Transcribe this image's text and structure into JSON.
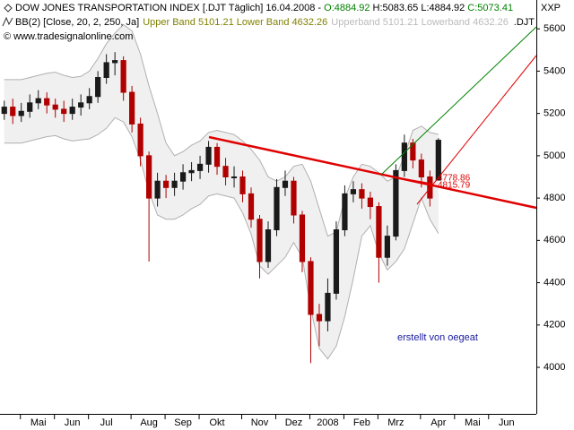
{
  "header": {
    "title": "DOW JONES TRANSPORTATION INDEX [.DJT  Täglich] 16.04.2008 - ",
    "open": "O:4884.92",
    "high_low": "H:5083.65 L:4884.92",
    "close": "C:5073.41",
    "indicator": "BB(2) [Close, 20, 2, 250, Ja]",
    "bands": "Upper Band 5101.21 Lower Band 4632.26",
    "bands_faint": "Upperband 5101.21 Lowerband 4632.26",
    "symbol": ".DJT",
    "copyright": "© www.tradesignalonline.com",
    "corner": "XXP"
  },
  "chart_data": {
    "type": "candlestick",
    "categories": [
      null,
      null,
      null,
      null,
      "Mai",
      null,
      null,
      null,
      "Jun",
      null,
      null,
      null,
      "Jul",
      null,
      null,
      null,
      null,
      "Aug",
      null,
      null,
      null,
      "Sep",
      null,
      null,
      null,
      "Okt",
      null,
      null,
      null,
      null,
      "Nov",
      null,
      null,
      null,
      "Dez",
      null,
      null,
      null,
      "2008",
      null,
      null,
      null,
      "Feb",
      null,
      null,
      null,
      "Mrz",
      null,
      null,
      null,
      null,
      "Apr",
      null,
      null,
      null,
      "Mai",
      null,
      null,
      null,
      "Jun",
      null,
      null,
      null
    ],
    "open": [
      5200,
      5230,
      5190,
      5210,
      5250,
      5270,
      5240,
      5220,
      5200,
      5230,
      5250,
      5280,
      5370,
      5440,
      5450,
      5300,
      5150,
      5000,
      4800,
      4880,
      4850,
      4880,
      4920,
      4930,
      4960,
      5040,
      4950,
      4900,
      4900,
      4820,
      4700,
      4500,
      4650,
      4850,
      4880,
      4720,
      4500,
      4250,
      4220,
      4350,
      4650,
      4820,
      4840,
      4800,
      4760,
      4520,
      4620,
      4930,
      5060,
      4980,
      4900,
      4884.92,
      null,
      null,
      null,
      null,
      null,
      null,
      null,
      null,
      null,
      null,
      null
    ],
    "high": [
      5260,
      5270,
      5250,
      5290,
      5310,
      5300,
      5270,
      5260,
      5270,
      5290,
      5320,
      5400,
      5480,
      5490,
      5470,
      5330,
      5180,
      5020,
      4920,
      4910,
      4920,
      4960,
      4970,
      5000,
      5070,
      5060,
      4990,
      4950,
      4930,
      4850,
      4720,
      4690,
      4890,
      4930,
      4900,
      4740,
      4520,
      4300,
      4420,
      4690,
      4860,
      4880,
      4870,
      4830,
      4780,
      4670,
      4960,
      5100,
      5080,
      5010,
      4930,
      5083.65,
      null,
      null,
      null,
      null,
      null,
      null,
      null,
      null,
      null,
      null,
      null
    ],
    "low": [
      5170,
      5150,
      5160,
      5180,
      5220,
      5200,
      5180,
      5160,
      5170,
      5190,
      5220,
      5250,
      5340,
      5380,
      5260,
      5110,
      4950,
      4500,
      4760,
      4800,
      4810,
      4840,
      4880,
      4890,
      4920,
      4910,
      4860,
      4850,
      4780,
      4660,
      4420,
      4470,
      4620,
      4810,
      4680,
      4450,
      4020,
      4100,
      4170,
      4320,
      4620,
      4780,
      4750,
      4700,
      4400,
      4480,
      4600,
      4900,
      4940,
      4850,
      4760,
      4884.92,
      null,
      null,
      null,
      null,
      null,
      null,
      null,
      null,
      null,
      null,
      null
    ],
    "close": [
      5230,
      5190,
      5210,
      5250,
      5270,
      5240,
      5220,
      5200,
      5230,
      5250,
      5280,
      5370,
      5440,
      5450,
      5300,
      5150,
      5000,
      4800,
      4880,
      4850,
      4880,
      4920,
      4930,
      4960,
      5040,
      4950,
      4900,
      4900,
      4820,
      4700,
      4500,
      4650,
      4850,
      4880,
      4720,
      4500,
      4250,
      4220,
      4350,
      4650,
      4820,
      4840,
      4800,
      4760,
      4520,
      4620,
      4930,
      5060,
      4980,
      4900,
      4800,
      5073.41,
      null,
      null,
      null,
      null,
      null,
      null,
      null,
      null,
      null,
      null,
      null
    ],
    "up_color": "#1a1a1a",
    "down_color": "#b00000",
    "bands": {
      "color": "#b0b0b0",
      "fill": "#f0f0f0",
      "upper": [
        5360,
        5360,
        5360,
        5370,
        5380,
        5390,
        5395,
        5380,
        5370,
        5375,
        5400,
        5460,
        5530,
        5580,
        5620,
        5590,
        5480,
        5330,
        5200,
        5060,
        5000,
        5020,
        5050,
        5070,
        5110,
        5120,
        5110,
        5100,
        5070,
        5030,
        4980,
        4900,
        4880,
        4900,
        4950,
        4960,
        4880,
        4750,
        4620,
        4640,
        4800,
        4900,
        4960,
        4950,
        4920,
        4880,
        4900,
        5000,
        5120,
        5140,
        5110,
        5101.21,
        null,
        null,
        null,
        null,
        null,
        null,
        null,
        null,
        null,
        null,
        null
      ],
      "lower": [
        5060,
        5060,
        5060,
        5070,
        5080,
        5090,
        5095,
        5080,
        5070,
        5075,
        5080,
        5100,
        5130,
        5180,
        5160,
        5090,
        4980,
        4830,
        4720,
        4700,
        4700,
        4720,
        4750,
        4770,
        4810,
        4820,
        4810,
        4800,
        4730,
        4630,
        4480,
        4440,
        4480,
        4520,
        4590,
        4520,
        4280,
        4090,
        4040,
        4100,
        4240,
        4420,
        4620,
        4670,
        4540,
        4460,
        4500,
        4560,
        4680,
        4800,
        4700,
        4632.26,
        null,
        null,
        null,
        null,
        null,
        null,
        null,
        null,
        null,
        null,
        null
      ]
    },
    "annotations": [
      "4778.86",
      "4815.79",
      "erstellt von oegeat"
    ],
    "ylim": [
      3780,
      5660
    ],
    "yticks": [
      4000,
      4200,
      4400,
      4600,
      4800,
      5000,
      5200,
      5400,
      5600
    ]
  }
}
